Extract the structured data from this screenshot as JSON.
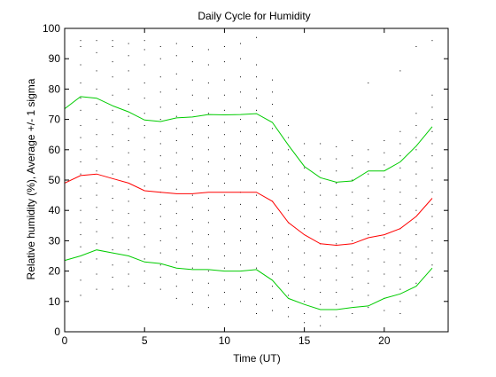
{
  "chart_data": {
    "type": "line",
    "title": "Daily Cycle for Humidity",
    "xlabel": "Time (UT)",
    "ylabel": "Relative humidity (%), Average +/- 1 sigma",
    "xlim": [
      0,
      24
    ],
    "ylim": [
      0,
      100
    ],
    "xticks": [
      0,
      5,
      10,
      15,
      20
    ],
    "yticks": [
      0,
      10,
      20,
      30,
      40,
      50,
      60,
      70,
      80,
      90,
      100
    ],
    "grid": false,
    "x": [
      0,
      1,
      2,
      3,
      4,
      5,
      6,
      7,
      8,
      9,
      10,
      11,
      12,
      13,
      14,
      15,
      16,
      17,
      18,
      19,
      20,
      21,
      22,
      23
    ],
    "series": [
      {
        "color": "#00cc00",
        "values": [
          73.5,
          77.5,
          77,
          74.5,
          72.5,
          69.8,
          69.3,
          70.5,
          70.8,
          71.6,
          71.5,
          71.6,
          71.9,
          69,
          61.5,
          54.5,
          50.8,
          49.3,
          49.7,
          53,
          53,
          56,
          61.2,
          67.6
        ]
      },
      {
        "color": "#ff0000",
        "values": [
          49,
          51.5,
          52,
          50.5,
          49,
          46.5,
          46,
          45.5,
          45.5,
          46,
          46,
          46,
          46,
          43,
          36,
          32,
          29,
          28.5,
          29,
          31,
          32,
          34,
          38,
          44
        ]
      },
      {
        "color": "#00cc00",
        "values": [
          23.5,
          25,
          27,
          26,
          25,
          23,
          22.5,
          21,
          20.5,
          20.5,
          20,
          20,
          20.5,
          17,
          11,
          9,
          7.3,
          7.3,
          8,
          8.5,
          11,
          12.5,
          15,
          21
        ]
      }
    ],
    "scatter": {
      "color": "#000000",
      "note_values_are_observations": true,
      "columns": [
        {
          "x": 0,
          "y": [
            93,
            88,
            82,
            76,
            71,
            66,
            60,
            55,
            50,
            46,
            42,
            38,
            33,
            29,
            25,
            20,
            15
          ]
        },
        {
          "x": 1,
          "y": [
            96,
            94,
            88,
            82,
            77,
            73,
            68,
            64,
            60,
            56,
            52,
            48,
            44,
            40,
            36,
            32,
            28,
            23,
            17,
            12
          ]
        },
        {
          "x": 2,
          "y": [
            96,
            92,
            86,
            80,
            75,
            70,
            65,
            61,
            57,
            53,
            49,
            45,
            41,
            37,
            33,
            29,
            24,
            19,
            14
          ]
        },
        {
          "x": 3,
          "y": [
            96,
            94,
            89,
            84,
            78,
            73,
            69,
            65,
            61,
            56,
            52,
            48,
            44,
            40,
            36,
            31,
            27,
            22,
            18,
            14
          ]
        },
        {
          "x": 4,
          "y": [
            95,
            91,
            86,
            80,
            75,
            71,
            67,
            63,
            59,
            55,
            51,
            47,
            43,
            39,
            35,
            31,
            27,
            23,
            19,
            15
          ]
        },
        {
          "x": 5,
          "y": [
            96,
            93,
            88,
            82,
            77,
            72,
            68,
            64,
            60,
            56,
            52,
            48,
            44,
            40,
            36,
            32,
            28,
            24,
            20,
            16
          ]
        },
        {
          "x": 6,
          "y": [
            94,
            90,
            84,
            79,
            74,
            70,
            66,
            62,
            58,
            54,
            50,
            46,
            42,
            38,
            34,
            30,
            26,
            22,
            18,
            14
          ]
        },
        {
          "x": 7,
          "y": [
            95,
            91,
            85,
            80,
            75,
            71,
            67,
            63,
            59,
            55,
            51,
            47,
            43,
            39,
            35,
            31,
            27,
            23,
            19,
            15,
            11
          ]
        },
        {
          "x": 8,
          "y": [
            94,
            89,
            83,
            78,
            73,
            69,
            65,
            61,
            57,
            53,
            49,
            45,
            41,
            37,
            33,
            29,
            25,
            21,
            17,
            13,
            9
          ]
        },
        {
          "x": 9,
          "y": [
            93,
            88,
            82,
            77,
            72,
            68,
            64,
            60,
            56,
            52,
            48,
            44,
            40,
            36,
            32,
            28,
            24,
            20,
            16,
            12,
            8
          ]
        },
        {
          "x": 10,
          "y": [
            94,
            89,
            83,
            78,
            73,
            69,
            65,
            61,
            57,
            53,
            49,
            45,
            41,
            37,
            33,
            29,
            25,
            21,
            17,
            13,
            9
          ]
        },
        {
          "x": 11,
          "y": [
            95,
            90,
            84,
            79,
            74,
            70,
            66,
            62,
            58,
            54,
            50,
            46,
            42,
            38,
            34,
            30,
            26,
            22,
            18,
            14,
            10
          ]
        },
        {
          "x": 12,
          "y": [
            97,
            88,
            84,
            80,
            77,
            73,
            69,
            65,
            61,
            57,
            53,
            49,
            45,
            41,
            37,
            33,
            29,
            25,
            21,
            17,
            13,
            9,
            6
          ]
        },
        {
          "x": 13,
          "y": [
            83,
            79,
            75,
            71,
            67,
            63,
            59,
            55,
            51,
            47,
            43,
            39,
            35,
            31,
            27,
            23,
            19,
            15,
            11,
            7
          ]
        },
        {
          "x": 14,
          "y": [
            68,
            64,
            60,
            56,
            52,
            48,
            44,
            40,
            36,
            32,
            28,
            24,
            20,
            16,
            12,
            8,
            5
          ]
        },
        {
          "x": 15,
          "y": [
            62,
            58,
            54,
            50,
            46,
            42,
            38,
            34,
            30,
            26,
            22,
            18,
            14,
            10,
            6,
            3
          ]
        },
        {
          "x": 16,
          "y": [
            62,
            57,
            53,
            49,
            45,
            41,
            37,
            33,
            29,
            25,
            21,
            17,
            13,
            9,
            5,
            2
          ]
        },
        {
          "x": 17,
          "y": [
            61,
            57,
            53,
            49,
            45,
            41,
            37,
            33,
            29,
            25,
            21,
            17,
            13,
            9,
            5
          ]
        },
        {
          "x": 18,
          "y": [
            63,
            58,
            54,
            50,
            46,
            42,
            38,
            34,
            30,
            26,
            22,
            18,
            14,
            10,
            6
          ]
        },
        {
          "x": 19,
          "y": [
            82,
            60,
            56,
            52,
            48,
            44,
            40,
            36,
            32,
            28,
            24,
            20,
            16,
            12,
            8
          ]
        },
        {
          "x": 20,
          "y": [
            63,
            59,
            55,
            51,
            47,
            43,
            39,
            35,
            31,
            27,
            23,
            19,
            15,
            11,
            7
          ]
        },
        {
          "x": 21,
          "y": [
            86,
            66,
            62,
            58,
            54,
            50,
            46,
            42,
            38,
            34,
            30,
            26,
            22,
            18,
            14,
            10,
            6
          ]
        },
        {
          "x": 22,
          "y": [
            94,
            72,
            68,
            64,
            60,
            56,
            52,
            48,
            44,
            40,
            36,
            32,
            28,
            24,
            20,
            16,
            12
          ]
        },
        {
          "x": 23,
          "y": [
            96,
            78,
            74,
            70,
            66,
            62,
            58,
            54,
            50,
            46,
            42,
            38,
            34,
            30,
            26,
            22,
            18
          ]
        }
      ]
    }
  }
}
